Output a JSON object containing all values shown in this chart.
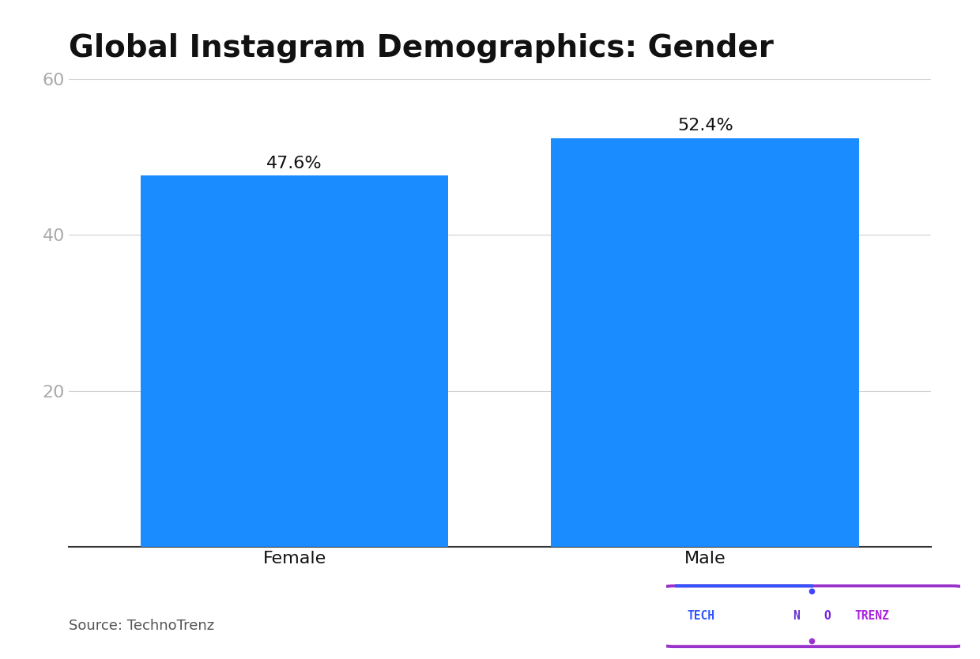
{
  "title": "Global Instagram Demographics: Gender",
  "categories": [
    "Female",
    "Male"
  ],
  "values": [
    47.6,
    52.4
  ],
  "labels": [
    "47.6%",
    "52.4%"
  ],
  "bar_color": "#1a8cff",
  "background_color": "#ffffff",
  "ylim": [
    0,
    60
  ],
  "yticks": [
    20,
    40,
    60
  ],
  "title_fontsize": 28,
  "tick_fontsize": 16,
  "label_fontsize": 16,
  "source_text": "Source: TechnoTrenz",
  "source_fontsize": 13,
  "grid_color": "#d0d0d0",
  "tick_color": "#aaaaaa",
  "spine_color": "#333333"
}
